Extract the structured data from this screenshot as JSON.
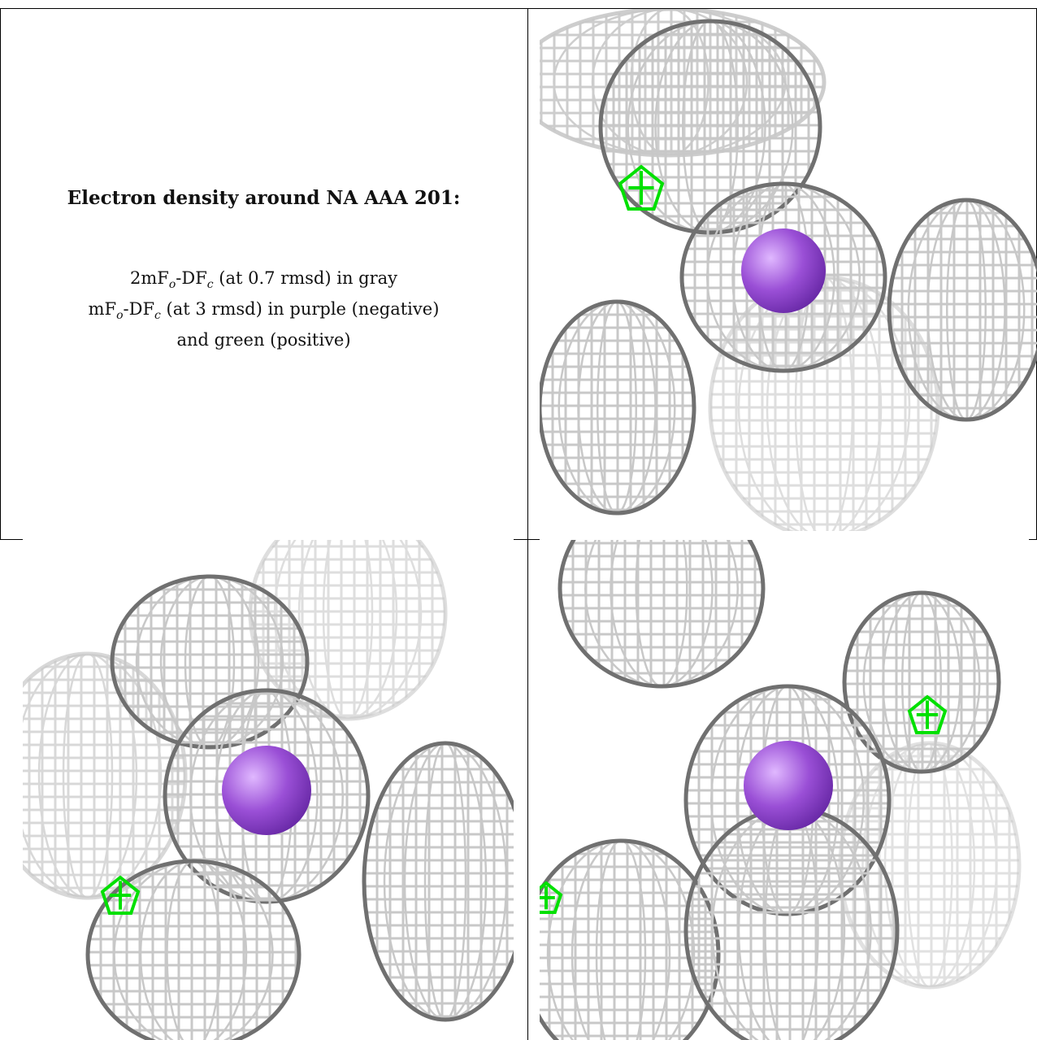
{
  "legend": {
    "title": "Electron density around NA AAA 201:",
    "line1_prefix": "2mF",
    "line1_sub1": "o",
    "line1_mid": "-DF",
    "line1_sub2": "c",
    "line1_suffix": " (at 0.7 rmsd) in gray",
    "line2_prefix": "mF",
    "line2_sub1": "o",
    "line2_mid": "-DF",
    "line2_sub2": "c",
    "line2_suffix": " (at 3 rmsd) in purple (negative)",
    "line3": "and green (positive)"
  },
  "colors": {
    "mesh_dark": "#707070",
    "mesh_light": "#c8c8c8",
    "atom": "#9a4fd6",
    "positive": "#00e000"
  },
  "panels": [
    {
      "name": "view-1",
      "atom": "sodium",
      "mesh": "2mFo-DFc"
    },
    {
      "name": "view-2",
      "atom": "sodium",
      "mesh": "2mFo-DFc"
    },
    {
      "name": "view-3",
      "atom": "sodium",
      "mesh": "2mFo-DFc"
    }
  ]
}
